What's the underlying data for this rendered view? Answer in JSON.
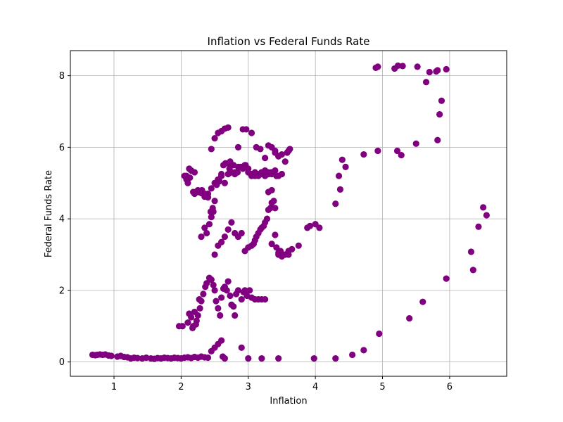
{
  "chart_data": {
    "type": "scatter",
    "title": "Inflation vs Federal Funds Rate",
    "xlabel": "Inflation",
    "ylabel": "Federal Funds Rate",
    "xlim": [
      0.35,
      6.85
    ],
    "ylim": [
      -0.4,
      8.7
    ],
    "xticks": [
      1,
      2,
      3,
      4,
      5,
      6
    ],
    "yticks": [
      0,
      2,
      4,
      6,
      8
    ],
    "grid": true,
    "marker_color": "#800080",
    "series": [
      {
        "x": [
          0.68,
          0.72,
          0.75,
          0.79,
          0.83,
          0.87,
          0.92,
          0.96,
          1.05,
          1.1,
          1.15,
          1.2,
          1.25,
          1.3,
          1.35,
          1.42,
          1.48,
          1.55,
          1.6,
          1.65,
          1.7,
          1.75,
          1.8,
          1.85,
          1.9,
          1.95,
          2.0,
          2.05,
          2.1,
          2.15,
          2.2,
          2.25,
          2.3,
          2.35,
          2.4,
          2.45,
          2.5,
          2.55,
          2.6,
          2.62,
          2.65,
          2.9,
          3.0,
          3.2,
          3.45,
          3.98,
          4.3,
          4.55,
          4.72,
          4.95,
          5.4,
          5.6,
          5.95,
          6.32,
          6.35,
          6.43,
          6.5,
          6.55,
          2.1,
          2.15,
          2.18,
          2.2,
          2.22,
          2.25,
          2.28,
          2.3,
          2.12,
          2.17,
          2.23,
          2.27,
          2.33,
          2.36,
          2.38,
          2.42,
          2.45,
          2.48,
          2.5,
          2.52,
          2.55,
          2.58,
          2.6,
          2.63,
          2.65,
          2.68,
          2.7,
          2.73,
          2.75,
          2.78,
          2.8,
          2.82,
          2.85,
          2.9,
          2.93,
          2.95,
          2.98,
          3.02,
          3.05,
          3.1,
          3.15,
          3.2,
          3.25,
          1.97,
          2.02,
          2.08,
          2.13,
          2.2,
          2.26,
          2.31,
          2.35,
          2.4,
          2.44,
          2.47,
          2.5,
          2.53,
          2.57,
          2.6,
          2.63,
          2.66,
          2.7,
          2.73,
          2.76,
          2.8,
          2.84,
          2.88,
          2.92,
          2.96,
          3.0,
          3.05,
          3.1,
          3.15,
          3.2,
          3.25,
          3.3,
          3.35,
          3.4,
          3.45,
          3.5,
          3.55,
          3.58,
          3.6,
          3.62,
          2.05,
          2.08,
          2.1,
          2.12,
          2.15,
          2.18,
          2.2,
          2.22,
          2.25,
          2.3,
          2.35,
          2.4,
          2.45,
          2.5,
          2.55,
          2.6,
          2.65,
          2.7,
          2.75,
          2.8,
          2.85,
          2.9,
          2.95,
          3.0,
          3.05,
          3.1,
          3.15,
          3.2,
          3.25,
          3.3,
          3.35,
          3.4,
          3.45,
          3.5,
          2.3,
          2.35,
          2.38,
          2.42,
          2.45,
          2.48,
          2.5,
          2.55,
          2.6,
          2.65,
          2.7,
          2.75,
          2.8,
          2.85,
          2.9,
          2.95,
          3.0,
          3.05,
          3.08,
          3.1,
          3.12,
          3.15,
          3.18,
          3.2,
          3.23,
          3.25,
          3.28,
          3.3,
          3.33,
          3.35,
          3.38,
          3.4,
          3.42,
          3.45,
          3.48,
          3.5,
          3.55,
          3.6,
          3.65,
          3.75,
          3.88,
          3.92,
          4.0,
          4.06,
          3.35,
          3.45,
          3.52,
          3.6,
          2.45,
          2.5,
          2.55,
          2.6,
          2.65,
          2.7,
          2.72,
          2.78,
          2.85,
          2.92,
          2.97,
          3.05,
          3.12,
          3.18,
          3.25,
          3.3,
          3.35,
          3.4,
          3.45,
          3.2,
          3.25,
          3.3,
          3.35,
          3.38,
          3.42,
          3.3,
          3.35,
          3.4,
          4.3,
          4.37,
          4.45,
          4.4,
          4.35,
          4.72,
          4.93,
          5.22,
          5.28,
          5.5,
          5.82,
          5.85,
          5.88,
          5.65,
          5.7,
          5.8,
          5.82,
          5.95,
          5.52,
          5.3,
          5.23,
          5.18,
          4.9,
          4.93
        ],
        "y": [
          0.2,
          0.19,
          0.2,
          0.21,
          0.2,
          0.21,
          0.18,
          0.17,
          0.15,
          0.17,
          0.14,
          0.13,
          0.1,
          0.12,
          0.11,
          0.1,
          0.12,
          0.1,
          0.09,
          0.11,
          0.1,
          0.12,
          0.11,
          0.1,
          0.12,
          0.11,
          0.1,
          0.12,
          0.13,
          0.11,
          0.14,
          0.12,
          0.15,
          0.13,
          0.12,
          0.3,
          0.4,
          0.5,
          0.6,
          0.15,
          0.1,
          0.4,
          0.1,
          0.1,
          0.1,
          0.1,
          0.1,
          0.2,
          0.33,
          0.79,
          1.22,
          1.68,
          2.33,
          3.08,
          2.57,
          3.78,
          4.32,
          4.1,
          1.1,
          1.25,
          1.0,
          1.4,
          1.05,
          1.3,
          1.5,
          1.7,
          1.35,
          0.95,
          1.15,
          1.75,
          1.9,
          2.1,
          2.2,
          2.35,
          2.3,
          2.15,
          2.0,
          1.7,
          1.5,
          1.3,
          1.8,
          2.05,
          2.1,
          2.0,
          2.25,
          1.85,
          1.6,
          1.55,
          1.3,
          1.9,
          2.0,
          1.75,
          1.95,
          2.0,
          1.85,
          2.0,
          1.8,
          1.75,
          1.75,
          1.75,
          1.75,
          1.0,
          1.0,
          5.2,
          5.15,
          5.3,
          4.75,
          4.8,
          4.7,
          4.6,
          4.2,
          4.3,
          4.5,
          4.95,
          5.05,
          5.25,
          5.5,
          5.55,
          5.55,
          5.6,
          5.5,
          5.25,
          5.3,
          5.45,
          5.4,
          5.5,
          5.3,
          5.25,
          5.2,
          5.25,
          5.3,
          5.2,
          5.25,
          5.3,
          5.85,
          5.75,
          5.8,
          5.6,
          5.85,
          5.9,
          5.95,
          5.2,
          5.1,
          5.0,
          5.4,
          5.35,
          4.75,
          4.7,
          4.75,
          4.8,
          4.72,
          4.62,
          4.7,
          4.85,
          5.0,
          5.1,
          5.2,
          5.0,
          5.25,
          5.3,
          5.3,
          5.45,
          5.45,
          5.5,
          5.4,
          5.2,
          5.3,
          5.2,
          5.25,
          5.25,
          5.25,
          5.3,
          5.35,
          5.2,
          5.25,
          3.5,
          3.75,
          3.6,
          3.85,
          4.05,
          4.2,
          3.0,
          3.25,
          3.35,
          3.5,
          3.7,
          3.9,
          3.6,
          3.5,
          3.6,
          3.1,
          3.2,
          3.25,
          3.3,
          3.4,
          3.5,
          3.6,
          3.7,
          3.75,
          3.8,
          3.9,
          4.0,
          4.25,
          4.3,
          4.45,
          4.5,
          3.55,
          3.2,
          3.0,
          3.1,
          2.95,
          3.0,
          3.1,
          3.15,
          3.25,
          3.75,
          3.8,
          3.85,
          3.75,
          3.3,
          3.05,
          3.0,
          3.0,
          5.95,
          6.25,
          6.4,
          6.45,
          6.52,
          6.55,
          5.4,
          5.5,
          6.0,
          6.5,
          6.5,
          6.4,
          6.0,
          5.95,
          5.7,
          6.05,
          6.0,
          5.9,
          5.75,
          5.3,
          5.35,
          5.3,
          5.25,
          5.3,
          5.2,
          4.75,
          4.8,
          4.3,
          4.42,
          4.82,
          5.45,
          5.65,
          5.2,
          5.8,
          5.9,
          5.9,
          5.78,
          6.1,
          6.2,
          6.92,
          7.3,
          7.82,
          8.1,
          8.12,
          8.15,
          8.18,
          8.25,
          8.27,
          8.28,
          8.2,
          8.22,
          8.25
        ]
      }
    ]
  }
}
